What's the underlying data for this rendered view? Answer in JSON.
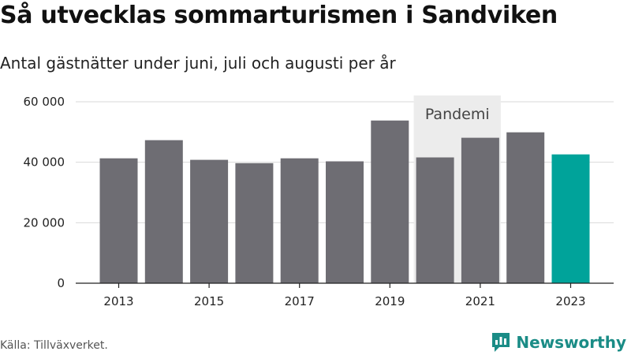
{
  "title": "Så utvecklas sommarturismen i Sandviken",
  "subtitle": "Antal gästnätter under juni, juli och augusti per år",
  "source": "Källa: Tillväxverket.",
  "brand": {
    "name": "Newsworthy",
    "icon": "newsworthy-logo-icon",
    "color": "#1a8c86"
  },
  "chart_data": {
    "type": "bar",
    "title": "Så utvecklas sommarturismen i Sandviken",
    "subtitle": "Antal gästnätter under juni, juli och augusti per år",
    "categories": [
      2013,
      2014,
      2015,
      2016,
      2017,
      2018,
      2019,
      2020,
      2021,
      2022,
      2023
    ],
    "values": [
      41300,
      47300,
      40800,
      39700,
      41300,
      40300,
      53800,
      41600,
      48100,
      49900,
      42600
    ],
    "highlight_category": 2023,
    "colors": {
      "bar": "#6e6d73",
      "highlight": "#00a39a",
      "annotation_band": "#ececec"
    },
    "ylim": [
      0,
      60000
    ],
    "yticks": [
      0,
      20000,
      40000,
      60000
    ],
    "ytick_labels": [
      "0",
      "20 000",
      "40 000",
      "60 000"
    ],
    "xticks": [
      2013,
      2015,
      2017,
      2019,
      2021,
      2023
    ],
    "grid": true,
    "xlabel": "",
    "ylabel": "",
    "annotation": {
      "label": "Pandemi",
      "from": 2020,
      "to": 2021
    }
  }
}
